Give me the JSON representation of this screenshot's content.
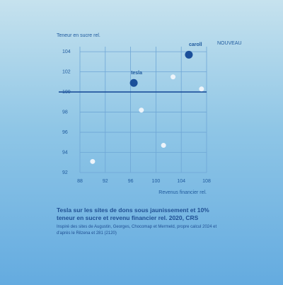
{
  "chart_data": {
    "type": "scatter",
    "y_label": "Teneur en sucre rel.",
    "x_label": "Revenus financier rel.",
    "x": [
      105.2,
      96.5,
      102.7,
      107.2,
      97.7,
      101.2,
      90.0
    ],
    "values": [
      103.7,
      100.9,
      101.5,
      100.3,
      98.2,
      94.7,
      93.1
    ],
    "point_labels": [
      "caroll",
      "tesla",
      null,
      null,
      null,
      null,
      null
    ],
    "highlight": [
      true,
      true,
      false,
      false,
      false,
      false,
      false
    ],
    "badge": "NOUVEAU",
    "color": "#1b4f9a",
    "other_color": "#eef4fa",
    "badge_color": "#c0394b",
    "xlim": [
      88,
      108
    ],
    "xticks": [
      88,
      92,
      96,
      100,
      104,
      108
    ],
    "ylim": [
      92,
      104.5
    ],
    "yticks": [
      92,
      94,
      96,
      98,
      100,
      102,
      104
    ],
    "reference_y": 100,
    "grid": true
  },
  "caption": {
    "title": "Tesla sur les sites de dons sous jaunissement et 10% teneur en sucre et revenu financier rel. 2020, CRS",
    "source": "Inspiré des sites de Augustin, Georges, Chocomap et Mermeld, propre calcul 2024 et d'après le Rilzena et 281 (2120)"
  }
}
